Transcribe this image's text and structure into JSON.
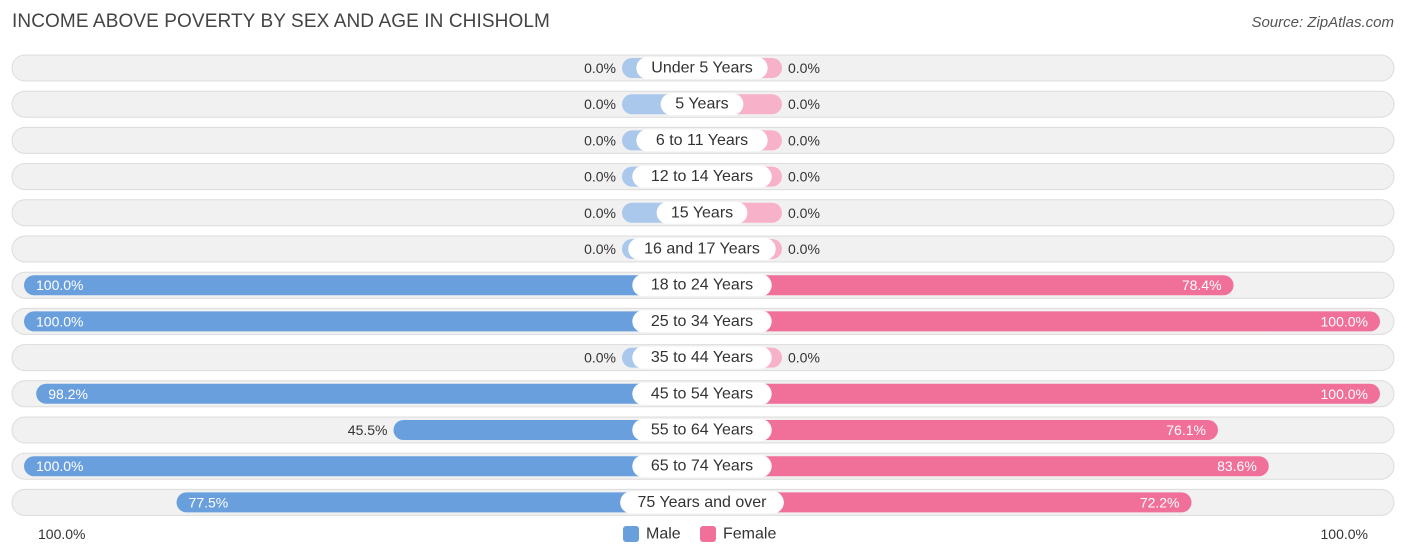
{
  "title": "INCOME ABOVE POVERTY BY SEX AND AGE IN CHISHOLM",
  "source": "Source: ZipAtlas.com",
  "chart_data": {
    "type": "bar",
    "orientation": "horizontal-diverging",
    "categories": [
      "Under 5 Years",
      "5 Years",
      "6 to 11 Years",
      "12 to 14 Years",
      "15 Years",
      "16 and 17 Years",
      "18 to 24 Years",
      "25 to 34 Years",
      "35 to 44 Years",
      "45 to 54 Years",
      "55 to 64 Years",
      "65 to 74 Years",
      "75 Years and over"
    ],
    "series": [
      {
        "name": "Male",
        "color": "#6a9fdd",
        "color_light": "#aac8ec",
        "values": [
          0.0,
          0.0,
          0.0,
          0.0,
          0.0,
          0.0,
          100.0,
          100.0,
          0.0,
          98.2,
          45.5,
          100.0,
          77.5
        ],
        "labels": [
          "0.0%",
          "0.0%",
          "0.0%",
          "0.0%",
          "0.0%",
          "0.0%",
          "100.0%",
          "100.0%",
          "0.0%",
          "98.2%",
          "45.5%",
          "100.0%",
          "77.5%"
        ]
      },
      {
        "name": "Female",
        "color": "#f0709a",
        "color_light": "#f7b1c8",
        "values": [
          0.0,
          0.0,
          0.0,
          0.0,
          0.0,
          0.0,
          78.4,
          100.0,
          0.0,
          100.0,
          76.1,
          83.6,
          72.2
        ],
        "labels": [
          "0.0%",
          "0.0%",
          "0.0%",
          "0.0%",
          "0.0%",
          "0.0%",
          "78.4%",
          "100.0%",
          "0.0%",
          "100.0%",
          "76.1%",
          "83.6%",
          "72.2%"
        ]
      }
    ],
    "xlim": [
      0,
      100
    ],
    "axis_labels": {
      "left": "100.0%",
      "right": "100.0%"
    },
    "legend": {
      "placement": "bottom-center",
      "items": [
        "Male",
        "Female"
      ]
    }
  }
}
